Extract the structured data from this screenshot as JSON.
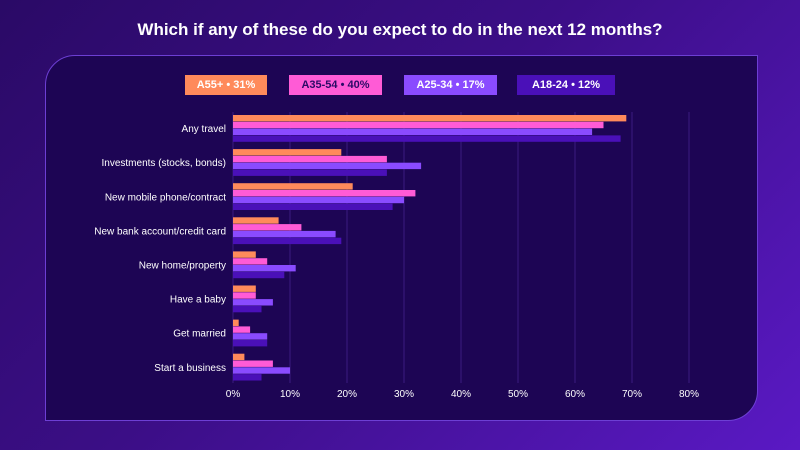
{
  "title": "Which if any of these do you expect to do in the next 12 months?",
  "legend": [
    {
      "label": "A55+ • 31%",
      "color": "#ff8a5b"
    },
    {
      "label": "A35-54 • 40%",
      "color": "#ff5bd6"
    },
    {
      "label": "A25-34 • 17%",
      "color": "#8a4bff"
    },
    {
      "label": "A18-24 • 12%",
      "color": "#4a10b8"
    }
  ],
  "chart_data": {
    "type": "bar",
    "orientation": "horizontal",
    "title": "Which if any of these do you expect to do in the next 12 months?",
    "categories": [
      "Any travel",
      "Investments (stocks, bonds)",
      "New mobile phone/contract",
      "New bank account/credit card",
      "New home/property",
      "Have a baby",
      "Get married",
      "Start a business"
    ],
    "series": [
      {
        "name": "A55+ • 31%",
        "color": "#ff8a5b",
        "values": [
          69,
          19,
          21,
          8,
          4,
          4,
          1,
          2
        ]
      },
      {
        "name": "A35-54 • 40%",
        "color": "#ff5bd6",
        "values": [
          65,
          27,
          32,
          12,
          6,
          4,
          3,
          7
        ]
      },
      {
        "name": "A25-34 • 17%",
        "color": "#8a4bff",
        "values": [
          63,
          33,
          30,
          18,
          11,
          7,
          6,
          10
        ]
      },
      {
        "name": "A18-24 • 12%",
        "color": "#4a10b8",
        "values": [
          68,
          27,
          28,
          19,
          9,
          5,
          6,
          5
        ]
      }
    ],
    "xlim": [
      0,
      80
    ],
    "xticks": [
      "0%",
      "10%",
      "20%",
      "30%",
      "40%",
      "50%",
      "60%",
      "70%",
      "80%"
    ],
    "grid": true,
    "legend_position": "top"
  }
}
